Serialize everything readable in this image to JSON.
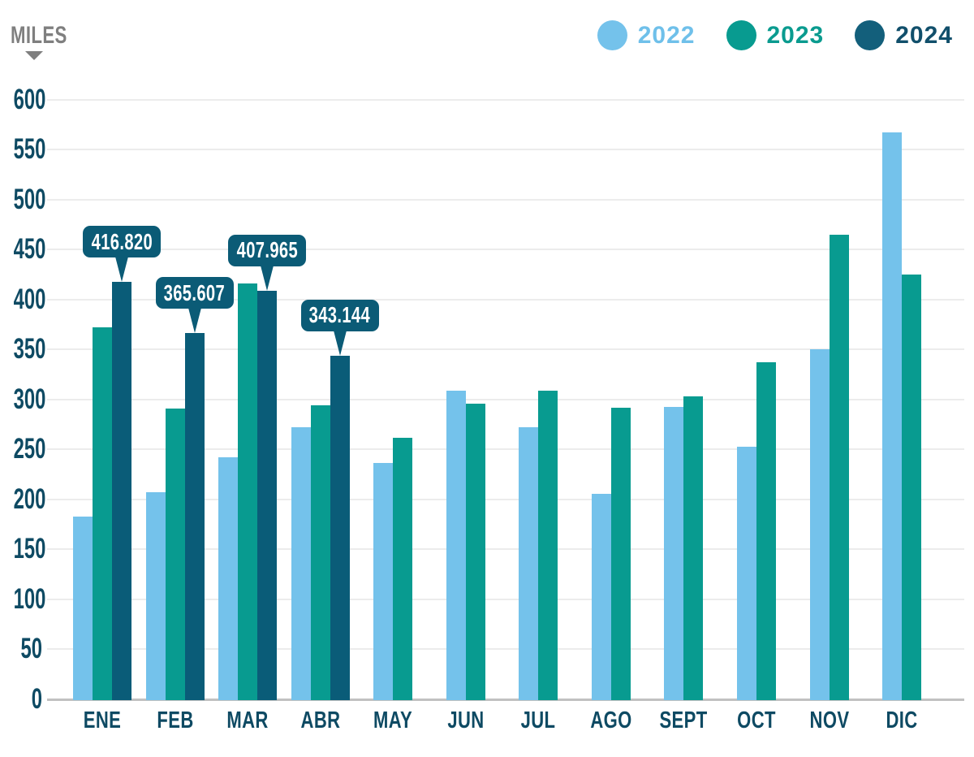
{
  "header": {
    "axis_unit_label": "MILES"
  },
  "legend": [
    {
      "label": "2022",
      "dot_color": "#74c2eb",
      "text_color": "#6fc0ea"
    },
    {
      "label": "2023",
      "dot_color": "#089b90",
      "text_color": "#0a9b8f"
    },
    {
      "label": "2024",
      "dot_color": "#135f7b",
      "text_color": "#114f6b"
    }
  ],
  "colors": {
    "series_2022": "#74c2eb",
    "series_2023": "#089b90",
    "series_2024": "#0a5c78",
    "callout_background": "#0b5b76",
    "callout_text": "#ffffff",
    "axis_text": "#0e4a63",
    "unit_label_gray": "#7f7f7f",
    "gridline": "#ececec",
    "baseline": "#c1c1c1"
  },
  "chart_data": {
    "type": "bar",
    "title": "",
    "unit_label": "MILES",
    "categories": [
      "ENE",
      "FEB",
      "MAR",
      "ABR",
      "MAY",
      "JUN",
      "JUL",
      "AGO",
      "SEPT",
      "OCT",
      "NOV",
      "DIC"
    ],
    "series": [
      {
        "name": "2022",
        "color": "#74c2eb",
        "values": [
          182,
          206,
          241,
          271,
          236,
          308,
          271,
          205,
          292,
          252,
          349,
          566
        ]
      },
      {
        "name": "2023",
        "color": "#089b90",
        "values": [
          371,
          290,
          415,
          293,
          261,
          295,
          308,
          291,
          302,
          336,
          464,
          424
        ]
      },
      {
        "name": "2024",
        "color": "#0a5c78",
        "values": [
          416.82,
          365.607,
          407.965,
          343.144,
          null,
          null,
          null,
          null,
          null,
          null,
          null,
          null
        ]
      }
    ],
    "y_ticks": [
      600,
      550,
      500,
      450,
      400,
      350,
      300,
      250,
      200,
      150,
      100,
      50,
      0
    ],
    "ylim": [
      0,
      600
    ],
    "grid": true,
    "legend_position": "top-right",
    "callouts": [
      {
        "category": "ENE",
        "series": "2024",
        "month_index": 0,
        "label": "416.820",
        "value": 416.82
      },
      {
        "category": "FEB",
        "series": "2024",
        "month_index": 1,
        "label": "365.607",
        "value": 365.607
      },
      {
        "category": "MAR",
        "series": "2024",
        "month_index": 2,
        "label": "407.965",
        "value": 407.965
      },
      {
        "category": "ABR",
        "series": "2024",
        "month_index": 3,
        "label": "343.144",
        "value": 343.144
      }
    ]
  }
}
